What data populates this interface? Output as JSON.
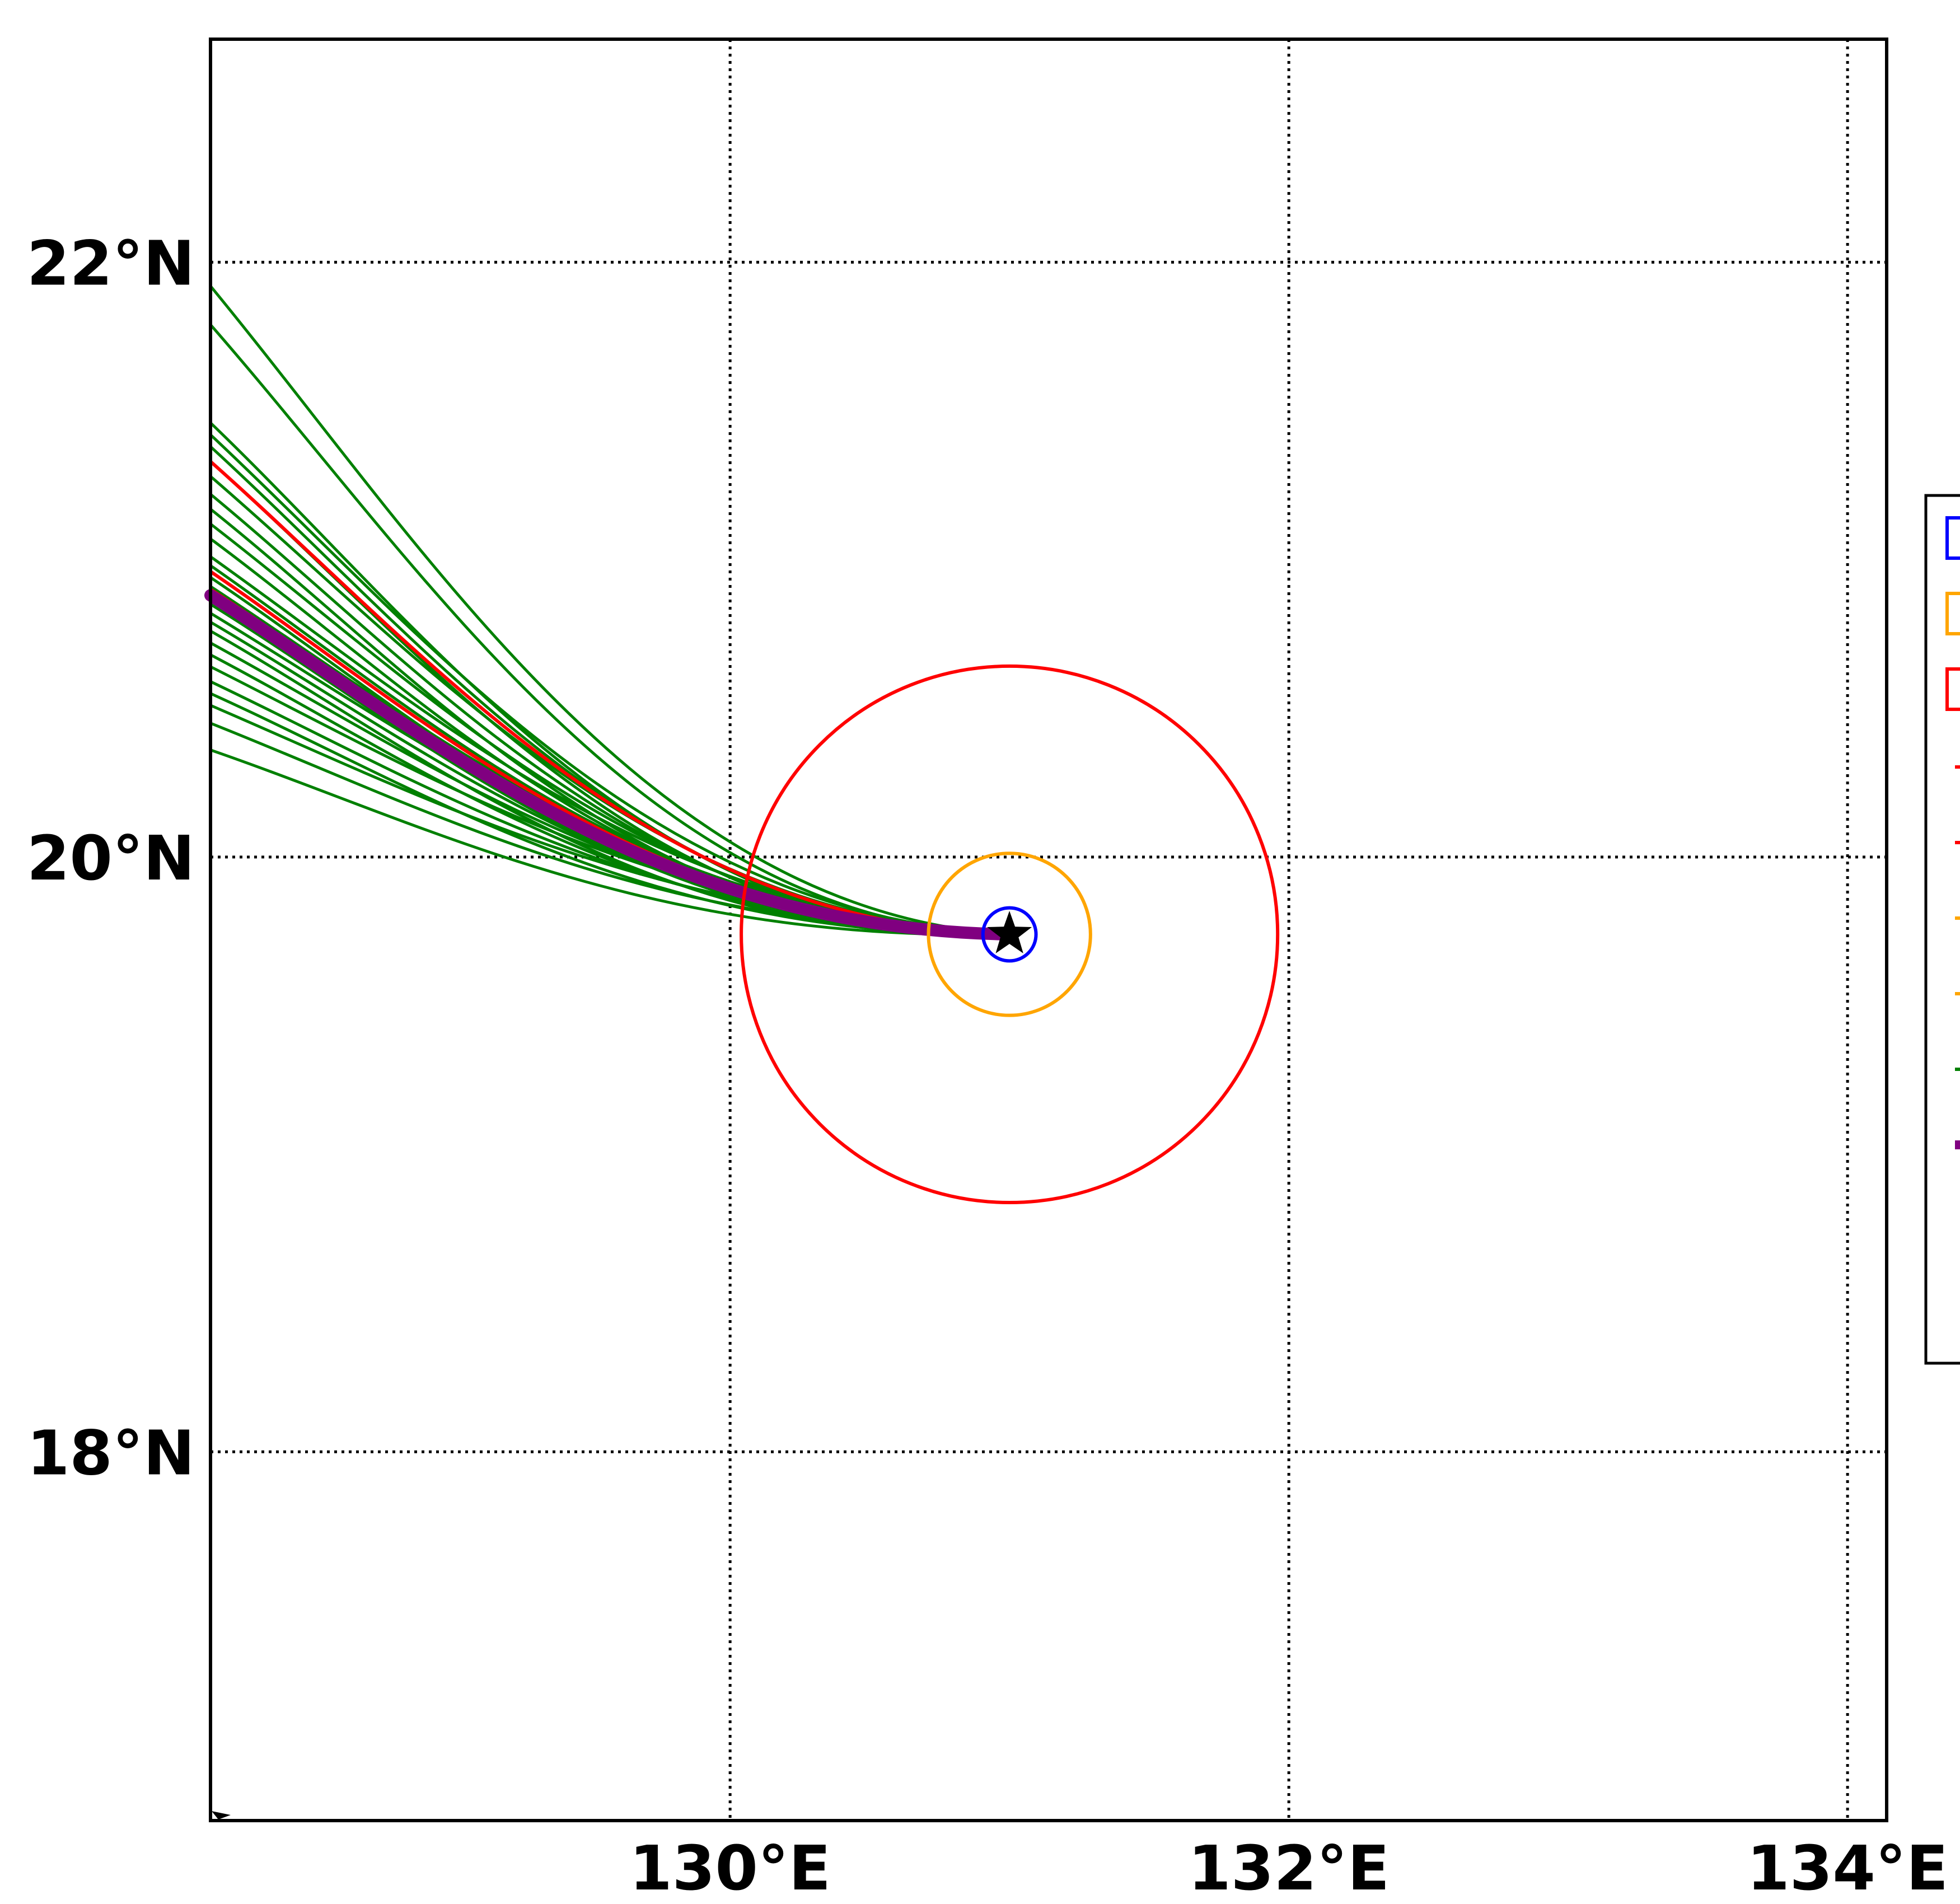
{
  "map": {
    "lon_range": [
      128.14,
      134.14
    ],
    "lat_range": [
      16.76,
      22.75
    ],
    "x_ticks": [
      {
        "lon": 130,
        "label": "130°E"
      },
      {
        "lon": 132,
        "label": "132°E"
      },
      {
        "lon": 134,
        "label": "134°E"
      }
    ],
    "y_ticks": [
      {
        "lat": 22,
        "label": "22°N"
      },
      {
        "lat": 20,
        "label": "20°N"
      },
      {
        "lat": 18,
        "label": "18°N"
      }
    ],
    "grid": "dotted",
    "center": {
      "lon": 131.0,
      "lat": 19.74,
      "marker": "star"
    },
    "circles": [
      {
        "name": "blue-circle",
        "color": "#0000ff",
        "radius_deg": 0.095
      },
      {
        "name": "orange-circle",
        "color": "#ffa500",
        "radius_deg": 0.29
      },
      {
        "name": "red-circle",
        "color": "#ff0000",
        "radius_deg": 0.96
      }
    ],
    "colors": {
      "ensemble": "#008000",
      "red_tracks": "#ff0000",
      "mean_track": "#800080"
    },
    "track_end_lon": 128.14,
    "ensemble_end_lats": [
      21.92,
      21.79,
      21.46,
      21.42,
      21.38,
      21.33,
      21.28,
      21.22,
      21.17,
      21.12,
      21.07,
      21.01,
      20.98,
      20.94,
      20.91,
      20.88,
      20.85,
      20.82,
      20.79,
      20.76,
      20.72,
      20.68,
      20.64,
      20.59,
      20.55,
      20.51,
      20.45,
      20.36
    ],
    "red_end_lats": [
      21.33,
      20.96,
      20.9
    ],
    "mean_end_lat": 20.88
  },
  "legend": {
    "colors": [
      "#0000ff",
      "#ffa500",
      "#ff0000",
      "#ff0000",
      "#ff0000",
      "#ffa500",
      "#ffa500",
      "#008000",
      "#800080"
    ]
  }
}
